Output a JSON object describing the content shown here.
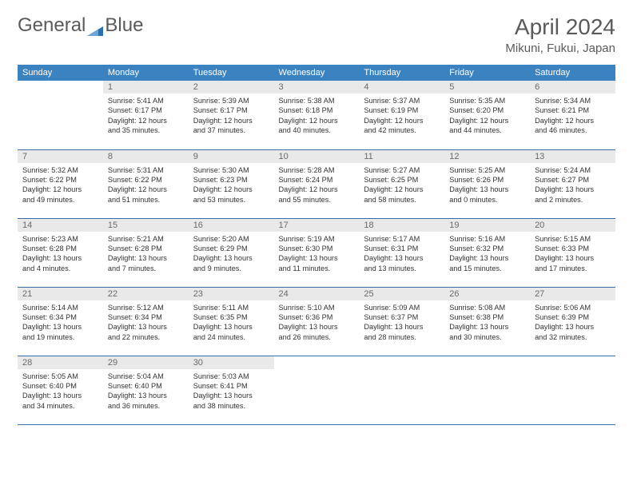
{
  "logo": {
    "text1": "General",
    "text2": "Blue"
  },
  "header": {
    "month": "April 2024",
    "location": "Mikuni, Fukui, Japan"
  },
  "colors": {
    "header_bg": "#3b83c0",
    "header_fg": "#ffffff",
    "daynum_bg": "#e9e9e9",
    "daynum_fg": "#6a6a6a",
    "row_border": "#3b6ea5",
    "text": "#333333",
    "title": "#5a5a5a",
    "logo_tri": "#2f6fae"
  },
  "weekdays": [
    "Sunday",
    "Monday",
    "Tuesday",
    "Wednesday",
    "Thursday",
    "Friday",
    "Saturday"
  ],
  "weeks": [
    [
      {
        "empty": true
      },
      {
        "day": "1",
        "l1": "Sunrise: 5:41 AM",
        "l2": "Sunset: 6:17 PM",
        "l3": "Daylight: 12 hours",
        "l4": "and 35 minutes."
      },
      {
        "day": "2",
        "l1": "Sunrise: 5:39 AM",
        "l2": "Sunset: 6:17 PM",
        "l3": "Daylight: 12 hours",
        "l4": "and 37 minutes."
      },
      {
        "day": "3",
        "l1": "Sunrise: 5:38 AM",
        "l2": "Sunset: 6:18 PM",
        "l3": "Daylight: 12 hours",
        "l4": "and 40 minutes."
      },
      {
        "day": "4",
        "l1": "Sunrise: 5:37 AM",
        "l2": "Sunset: 6:19 PM",
        "l3": "Daylight: 12 hours",
        "l4": "and 42 minutes."
      },
      {
        "day": "5",
        "l1": "Sunrise: 5:35 AM",
        "l2": "Sunset: 6:20 PM",
        "l3": "Daylight: 12 hours",
        "l4": "and 44 minutes."
      },
      {
        "day": "6",
        "l1": "Sunrise: 5:34 AM",
        "l2": "Sunset: 6:21 PM",
        "l3": "Daylight: 12 hours",
        "l4": "and 46 minutes."
      }
    ],
    [
      {
        "day": "7",
        "l1": "Sunrise: 5:32 AM",
        "l2": "Sunset: 6:22 PM",
        "l3": "Daylight: 12 hours",
        "l4": "and 49 minutes."
      },
      {
        "day": "8",
        "l1": "Sunrise: 5:31 AM",
        "l2": "Sunset: 6:22 PM",
        "l3": "Daylight: 12 hours",
        "l4": "and 51 minutes."
      },
      {
        "day": "9",
        "l1": "Sunrise: 5:30 AM",
        "l2": "Sunset: 6:23 PM",
        "l3": "Daylight: 12 hours",
        "l4": "and 53 minutes."
      },
      {
        "day": "10",
        "l1": "Sunrise: 5:28 AM",
        "l2": "Sunset: 6:24 PM",
        "l3": "Daylight: 12 hours",
        "l4": "and 55 minutes."
      },
      {
        "day": "11",
        "l1": "Sunrise: 5:27 AM",
        "l2": "Sunset: 6:25 PM",
        "l3": "Daylight: 12 hours",
        "l4": "and 58 minutes."
      },
      {
        "day": "12",
        "l1": "Sunrise: 5:25 AM",
        "l2": "Sunset: 6:26 PM",
        "l3": "Daylight: 13 hours",
        "l4": "and 0 minutes."
      },
      {
        "day": "13",
        "l1": "Sunrise: 5:24 AM",
        "l2": "Sunset: 6:27 PM",
        "l3": "Daylight: 13 hours",
        "l4": "and 2 minutes."
      }
    ],
    [
      {
        "day": "14",
        "l1": "Sunrise: 5:23 AM",
        "l2": "Sunset: 6:28 PM",
        "l3": "Daylight: 13 hours",
        "l4": "and 4 minutes."
      },
      {
        "day": "15",
        "l1": "Sunrise: 5:21 AM",
        "l2": "Sunset: 6:28 PM",
        "l3": "Daylight: 13 hours",
        "l4": "and 7 minutes."
      },
      {
        "day": "16",
        "l1": "Sunrise: 5:20 AM",
        "l2": "Sunset: 6:29 PM",
        "l3": "Daylight: 13 hours",
        "l4": "and 9 minutes."
      },
      {
        "day": "17",
        "l1": "Sunrise: 5:19 AM",
        "l2": "Sunset: 6:30 PM",
        "l3": "Daylight: 13 hours",
        "l4": "and 11 minutes."
      },
      {
        "day": "18",
        "l1": "Sunrise: 5:17 AM",
        "l2": "Sunset: 6:31 PM",
        "l3": "Daylight: 13 hours",
        "l4": "and 13 minutes."
      },
      {
        "day": "19",
        "l1": "Sunrise: 5:16 AM",
        "l2": "Sunset: 6:32 PM",
        "l3": "Daylight: 13 hours",
        "l4": "and 15 minutes."
      },
      {
        "day": "20",
        "l1": "Sunrise: 5:15 AM",
        "l2": "Sunset: 6:33 PM",
        "l3": "Daylight: 13 hours",
        "l4": "and 17 minutes."
      }
    ],
    [
      {
        "day": "21",
        "l1": "Sunrise: 5:14 AM",
        "l2": "Sunset: 6:34 PM",
        "l3": "Daylight: 13 hours",
        "l4": "and 19 minutes."
      },
      {
        "day": "22",
        "l1": "Sunrise: 5:12 AM",
        "l2": "Sunset: 6:34 PM",
        "l3": "Daylight: 13 hours",
        "l4": "and 22 minutes."
      },
      {
        "day": "23",
        "l1": "Sunrise: 5:11 AM",
        "l2": "Sunset: 6:35 PM",
        "l3": "Daylight: 13 hours",
        "l4": "and 24 minutes."
      },
      {
        "day": "24",
        "l1": "Sunrise: 5:10 AM",
        "l2": "Sunset: 6:36 PM",
        "l3": "Daylight: 13 hours",
        "l4": "and 26 minutes."
      },
      {
        "day": "25",
        "l1": "Sunrise: 5:09 AM",
        "l2": "Sunset: 6:37 PM",
        "l3": "Daylight: 13 hours",
        "l4": "and 28 minutes."
      },
      {
        "day": "26",
        "l1": "Sunrise: 5:08 AM",
        "l2": "Sunset: 6:38 PM",
        "l3": "Daylight: 13 hours",
        "l4": "and 30 minutes."
      },
      {
        "day": "27",
        "l1": "Sunrise: 5:06 AM",
        "l2": "Sunset: 6:39 PM",
        "l3": "Daylight: 13 hours",
        "l4": "and 32 minutes."
      }
    ],
    [
      {
        "day": "28",
        "l1": "Sunrise: 5:05 AM",
        "l2": "Sunset: 6:40 PM",
        "l3": "Daylight: 13 hours",
        "l4": "and 34 minutes."
      },
      {
        "day": "29",
        "l1": "Sunrise: 5:04 AM",
        "l2": "Sunset: 6:40 PM",
        "l3": "Daylight: 13 hours",
        "l4": "and 36 minutes."
      },
      {
        "day": "30",
        "l1": "Sunrise: 5:03 AM",
        "l2": "Sunset: 6:41 PM",
        "l3": "Daylight: 13 hours",
        "l4": "and 38 minutes."
      },
      {
        "empty": true
      },
      {
        "empty": true
      },
      {
        "empty": true
      },
      {
        "empty": true
      }
    ]
  ]
}
